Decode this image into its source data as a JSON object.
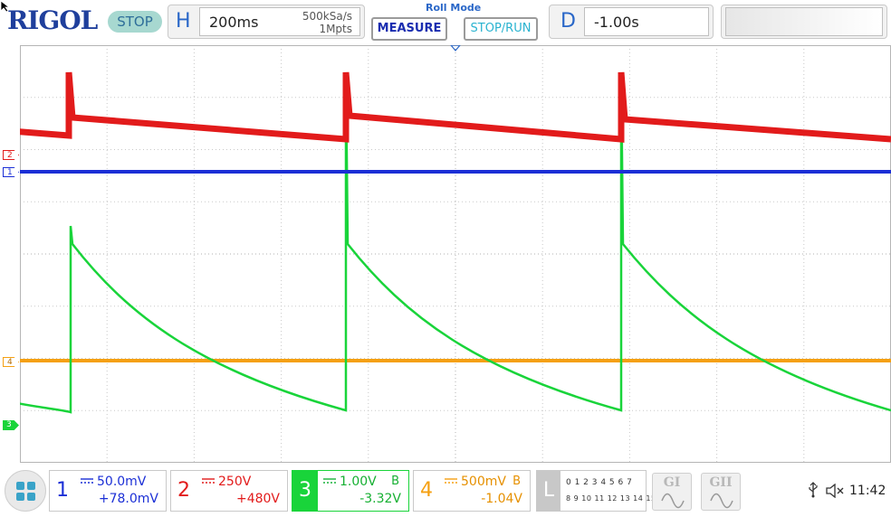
{
  "topbar": {
    "logo": "RIGOL",
    "status": "STOP",
    "horizontal": {
      "letter": "H",
      "timebase": "200ms",
      "sample_rate": "500kSa/s",
      "memory_depth": "1Mpts"
    },
    "mode": "Roll Mode",
    "measure_label": "MEASURE",
    "stop_run_label": "STOP/RUN",
    "delay": {
      "letter": "D",
      "value": "-1.00s"
    }
  },
  "icons": {
    "cursor": "mouse-cursor-icon",
    "home": "grid-menu-icon",
    "usb": "usb-icon",
    "speaker": "speaker-muted-icon",
    "generator": "sine-wave-icon"
  },
  "colors": {
    "ch1": "#1b2fd6",
    "ch2": "#e21b1b",
    "ch3": "#19d43a",
    "ch4": "#f5a012",
    "accent": "#2a67c8"
  },
  "markers": {
    "ch1": "1",
    "ch2": "2",
    "ch3": "3",
    "ch4": "4"
  },
  "channels": [
    {
      "num": "1",
      "scale": "50.0mV",
      "offset": "+78.0mV",
      "bw": ""
    },
    {
      "num": "2",
      "scale": "250V",
      "offset": "+480V",
      "bw": ""
    },
    {
      "num": "3",
      "scale": "1.00V",
      "offset": "-3.32V",
      "bw": "B"
    },
    {
      "num": "4",
      "scale": "500mV",
      "offset": "-1.04V",
      "bw": "B"
    }
  ],
  "logic": {
    "label": "L",
    "row1": "0 1 2 3  4 5 6 7",
    "row2": "8 9 10 11 12 13 14 15"
  },
  "generators": [
    {
      "label": "GI"
    },
    {
      "label": "GII"
    }
  ],
  "clock": "11:42"
}
